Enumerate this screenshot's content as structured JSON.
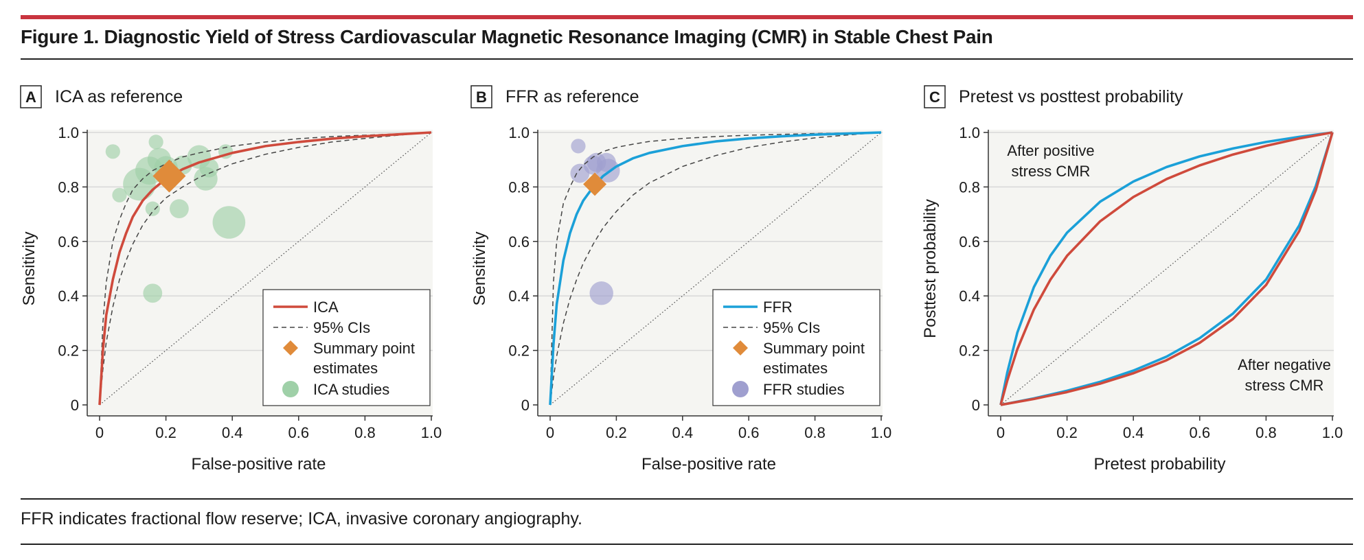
{
  "figure": {
    "title": "Figure 1. Diagnostic Yield of Stress Cardiovascular Magnetic Resonance Imaging (CMR) in Stable Chest Pain",
    "footnote": "FFR indicates fractional flow reserve; ICA, invasive coronary angiography."
  },
  "colors": {
    "ica": "#cf4a3c",
    "ffr": "#1ba0d8",
    "ci": "#444444",
    "summary": "#e08b3a",
    "ica_study": "#9fd0a8",
    "ffr_study": "#9f9fcf",
    "grid": "#d8d8d8",
    "panel_bg": "#f5f5f2",
    "accent_bar": "#c9343f"
  },
  "chart_data": [
    {
      "panel": "A",
      "type": "scatter",
      "title": "ICA as reference",
      "xlabel": "False-positive rate",
      "ylabel": "Sensitivity",
      "xlim": [
        0,
        1
      ],
      "ylim": [
        0,
        1
      ],
      "xticks": [
        "0",
        "0.2",
        "0.4",
        "0.6",
        "0.8",
        "1.0"
      ],
      "yticks": [
        "0",
        "0.2",
        "0.4",
        "0.6",
        "0.8",
        "1.0"
      ],
      "grid": true,
      "legend_position": "bottom-right",
      "legend": {
        "curve": "ICA",
        "ci": "95% CIs",
        "summary_line1": "Summary point",
        "summary_line2": "estimates",
        "studies": "ICA studies"
      },
      "series": [
        {
          "name": "ICA",
          "kind": "curve",
          "points": [
            [
              0,
              0
            ],
            [
              0.01,
              0.2
            ],
            [
              0.02,
              0.33
            ],
            [
              0.04,
              0.46
            ],
            [
              0.06,
              0.56
            ],
            [
              0.08,
              0.63
            ],
            [
              0.1,
              0.69
            ],
            [
              0.13,
              0.75
            ],
            [
              0.16,
              0.79
            ],
            [
              0.2,
              0.83
            ],
            [
              0.25,
              0.865
            ],
            [
              0.3,
              0.89
            ],
            [
              0.4,
              0.925
            ],
            [
              0.5,
              0.95
            ],
            [
              0.6,
              0.965
            ],
            [
              0.7,
              0.977
            ],
            [
              0.8,
              0.986
            ],
            [
              0.9,
              0.993
            ],
            [
              1,
              1
            ]
          ]
        },
        {
          "name": "95% CIs",
          "kind": "ci",
          "points": [
            [
              0,
              0
            ],
            [
              0.01,
              0.3
            ],
            [
              0.02,
              0.45
            ],
            [
              0.04,
              0.6
            ],
            [
              0.06,
              0.68
            ],
            [
              0.08,
              0.74
            ],
            [
              0.1,
              0.79
            ],
            [
              0.13,
              0.83
            ],
            [
              0.16,
              0.86
            ],
            [
              0.2,
              0.885
            ],
            [
              0.25,
              0.91
            ],
            [
              0.3,
              0.925
            ],
            [
              0.4,
              0.95
            ],
            [
              0.5,
              0.965
            ],
            [
              0.6,
              0.977
            ],
            [
              0.7,
              0.985
            ],
            [
              0.8,
              0.99
            ],
            [
              0.9,
              0.995
            ],
            [
              1,
              1
            ]
          ]
        },
        {
          "name": "95% CIs",
          "kind": "ci",
          "points": [
            [
              0,
              0
            ],
            [
              0.01,
              0.13
            ],
            [
              0.02,
              0.23
            ],
            [
              0.04,
              0.36
            ],
            [
              0.06,
              0.46
            ],
            [
              0.08,
              0.53
            ],
            [
              0.1,
              0.59
            ],
            [
              0.13,
              0.66
            ],
            [
              0.16,
              0.71
            ],
            [
              0.2,
              0.76
            ],
            [
              0.25,
              0.8
            ],
            [
              0.3,
              0.835
            ],
            [
              0.4,
              0.885
            ],
            [
              0.5,
              0.92
            ],
            [
              0.6,
              0.945
            ],
            [
              0.7,
              0.965
            ],
            [
              0.8,
              0.978
            ],
            [
              0.9,
              0.99
            ],
            [
              1,
              1
            ]
          ]
        }
      ],
      "summary_point": {
        "x": 0.21,
        "y": 0.84
      },
      "studies": [
        {
          "x": 0.04,
          "y": 0.93,
          "size": 2
        },
        {
          "x": 0.17,
          "y": 0.965,
          "size": 2
        },
        {
          "x": 0.06,
          "y": 0.77,
          "size": 2
        },
        {
          "x": 0.16,
          "y": 0.72,
          "size": 2
        },
        {
          "x": 0.16,
          "y": 0.41,
          "size": 3
        },
        {
          "x": 0.12,
          "y": 0.81,
          "size": 6
        },
        {
          "x": 0.15,
          "y": 0.86,
          "size": 5
        },
        {
          "x": 0.18,
          "y": 0.9,
          "size": 4
        },
        {
          "x": 0.2,
          "y": 0.87,
          "size": 4
        },
        {
          "x": 0.24,
          "y": 0.72,
          "size": 3
        },
        {
          "x": 0.25,
          "y": 0.88,
          "size": 3
        },
        {
          "x": 0.3,
          "y": 0.91,
          "size": 4
        },
        {
          "x": 0.32,
          "y": 0.83,
          "size": 4
        },
        {
          "x": 0.33,
          "y": 0.87,
          "size": 3
        },
        {
          "x": 0.38,
          "y": 0.93,
          "size": 2
        },
        {
          "x": 0.39,
          "y": 0.67,
          "size": 6
        }
      ]
    },
    {
      "panel": "B",
      "type": "scatter",
      "title": "FFR as reference",
      "xlabel": "False-positive rate",
      "ylabel": "Sensitivity",
      "xlim": [
        0,
        1
      ],
      "ylim": [
        0,
        1
      ],
      "xticks": [
        "0",
        "0.2",
        "0.4",
        "0.6",
        "0.8",
        "1.0"
      ],
      "yticks": [
        "0",
        "0.2",
        "0.4",
        "0.6",
        "0.8",
        "1.0"
      ],
      "grid": true,
      "legend_position": "bottom-right",
      "legend": {
        "curve": "FFR",
        "ci": "95% CIs",
        "summary_line1": "Summary point",
        "summary_line2": "estimates",
        "studies": "FFR studies"
      },
      "series": [
        {
          "name": "FFR",
          "kind": "curve",
          "points": [
            [
              0,
              0
            ],
            [
              0.01,
              0.22
            ],
            [
              0.02,
              0.37
            ],
            [
              0.04,
              0.53
            ],
            [
              0.06,
              0.63
            ],
            [
              0.08,
              0.7
            ],
            [
              0.1,
              0.75
            ],
            [
              0.13,
              0.8
            ],
            [
              0.16,
              0.84
            ],
            [
              0.2,
              0.875
            ],
            [
              0.25,
              0.905
            ],
            [
              0.3,
              0.925
            ],
            [
              0.4,
              0.95
            ],
            [
              0.5,
              0.967
            ],
            [
              0.6,
              0.978
            ],
            [
              0.7,
              0.986
            ],
            [
              0.8,
              0.992
            ],
            [
              0.9,
              0.996
            ],
            [
              1,
              1
            ]
          ]
        },
        {
          "name": "95% CIs",
          "kind": "ci",
          "points": [
            [
              0,
              0
            ],
            [
              0.01,
              0.45
            ],
            [
              0.02,
              0.6
            ],
            [
              0.04,
              0.74
            ],
            [
              0.06,
              0.8
            ],
            [
              0.08,
              0.85
            ],
            [
              0.1,
              0.88
            ],
            [
              0.13,
              0.91
            ],
            [
              0.16,
              0.93
            ],
            [
              0.2,
              0.945
            ],
            [
              0.25,
              0.957
            ],
            [
              0.3,
              0.967
            ],
            [
              0.4,
              0.978
            ],
            [
              0.5,
              0.985
            ],
            [
              0.6,
              0.99
            ],
            [
              0.7,
              0.993
            ],
            [
              0.8,
              0.996
            ],
            [
              0.9,
              0.998
            ],
            [
              1,
              1
            ]
          ]
        },
        {
          "name": "95% CIs",
          "kind": "ci",
          "points": [
            [
              0,
              0
            ],
            [
              0.01,
              0.1
            ],
            [
              0.02,
              0.18
            ],
            [
              0.04,
              0.3
            ],
            [
              0.06,
              0.39
            ],
            [
              0.08,
              0.46
            ],
            [
              0.1,
              0.52
            ],
            [
              0.13,
              0.59
            ],
            [
              0.16,
              0.65
            ],
            [
              0.2,
              0.71
            ],
            [
              0.25,
              0.77
            ],
            [
              0.3,
              0.815
            ],
            [
              0.4,
              0.875
            ],
            [
              0.5,
              0.915
            ],
            [
              0.6,
              0.945
            ],
            [
              0.7,
              0.965
            ],
            [
              0.8,
              0.98
            ],
            [
              0.9,
              0.991
            ],
            [
              1,
              1
            ]
          ]
        }
      ],
      "summary_point": {
        "x": 0.135,
        "y": 0.81
      },
      "studies": [
        {
          "x": 0.085,
          "y": 0.95,
          "size": 2
        },
        {
          "x": 0.09,
          "y": 0.85,
          "size": 3
        },
        {
          "x": 0.13,
          "y": 0.88,
          "size": 3
        },
        {
          "x": 0.14,
          "y": 0.89,
          "size": 3
        },
        {
          "x": 0.17,
          "y": 0.89,
          "size": 3
        },
        {
          "x": 0.175,
          "y": 0.86,
          "size": 4
        },
        {
          "x": 0.155,
          "y": 0.41,
          "size": 4
        }
      ]
    },
    {
      "panel": "C",
      "type": "line",
      "title": "Pretest vs posttest probability",
      "xlabel": "Pretest probability",
      "ylabel": "Posttest probability",
      "xlim": [
        0,
        1
      ],
      "ylim": [
        0,
        1
      ],
      "xticks": [
        "0",
        "0.2",
        "0.4",
        "0.6",
        "0.8",
        "1.0"
      ],
      "yticks": [
        "0",
        "0.2",
        "0.4",
        "0.6",
        "0.8",
        "1.0"
      ],
      "grid": true,
      "annotations": {
        "positive_line1": "After positive",
        "positive_line2": "stress CMR",
        "negative_line1": "After negative",
        "negative_line2": "stress CMR"
      },
      "series": [
        {
          "name": "FFR",
          "kind": "curve",
          "points": [
            [
              0,
              0
            ],
            [
              0.02,
              0.12
            ],
            [
              0.05,
              0.265
            ],
            [
              0.1,
              0.432
            ],
            [
              0.15,
              0.548
            ],
            [
              0.2,
              0.632
            ],
            [
              0.3,
              0.746
            ],
            [
              0.4,
              0.82
            ],
            [
              0.5,
              0.873
            ],
            [
              0.6,
              0.912
            ],
            [
              0.7,
              0.941
            ],
            [
              0.8,
              0.965
            ],
            [
              0.9,
              0.984
            ],
            [
              1,
              1
            ]
          ]
        },
        {
          "name": "ICA",
          "kind": "curve",
          "points": [
            [
              0,
              0
            ],
            [
              0.02,
              0.09
            ],
            [
              0.05,
              0.204
            ],
            [
              0.1,
              0.35
            ],
            [
              0.15,
              0.46
            ],
            [
              0.2,
              0.547
            ],
            [
              0.3,
              0.674
            ],
            [
              0.4,
              0.763
            ],
            [
              0.5,
              0.829
            ],
            [
              0.6,
              0.879
            ],
            [
              0.7,
              0.919
            ],
            [
              0.8,
              0.951
            ],
            [
              0.9,
              0.978
            ],
            [
              1,
              1
            ]
          ]
        },
        {
          "name": "FFR",
          "kind": "curve",
          "points": [
            [
              0,
              0
            ],
            [
              0.1,
              0.024
            ],
            [
              0.2,
              0.052
            ],
            [
              0.3,
              0.085
            ],
            [
              0.4,
              0.126
            ],
            [
              0.5,
              0.177
            ],
            [
              0.6,
              0.245
            ],
            [
              0.7,
              0.335
            ],
            [
              0.8,
              0.46
            ],
            [
              0.9,
              0.659
            ],
            [
              0.95,
              0.803
            ],
            [
              1,
              1
            ]
          ]
        },
        {
          "name": "ICA",
          "kind": "curve",
          "points": [
            [
              0,
              0
            ],
            [
              0.1,
              0.022
            ],
            [
              0.2,
              0.047
            ],
            [
              0.3,
              0.078
            ],
            [
              0.4,
              0.116
            ],
            [
              0.5,
              0.164
            ],
            [
              0.6,
              0.228
            ],
            [
              0.7,
              0.315
            ],
            [
              0.8,
              0.44
            ],
            [
              0.9,
              0.638
            ],
            [
              0.95,
              0.788
            ],
            [
              1,
              1
            ]
          ]
        }
      ]
    }
  ]
}
